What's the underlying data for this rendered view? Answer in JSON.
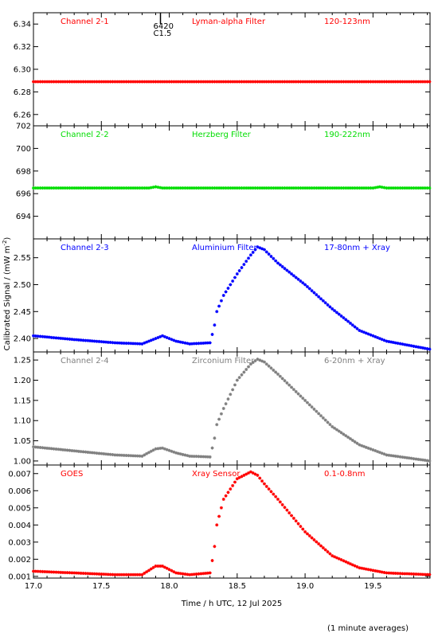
{
  "chart_data": {
    "type": "scatter",
    "xlabel": "Time / h UTC, 12 Jul 2025",
    "ylabel": "Calibrated Signal / (mW m^-2)",
    "xlim": [
      17.0,
      19.92
    ],
    "x_ticks": [
      "17.0",
      "17.5",
      "18.0",
      "18.5",
      "19.0",
      "19.5"
    ],
    "note": "(1 minute averages)",
    "flare_marker": {
      "x": 17.9,
      "labels": [
        "6420",
        "C1.5"
      ]
    },
    "marker": "asterisk",
    "panels": [
      {
        "label": "Channel 2-1",
        "filter": "Lyman-alpha Filter",
        "band": "120-123nm",
        "color": "#ff0000",
        "ylim": [
          6.25,
          6.35
        ],
        "y_ticks": [
          "6.26",
          "6.28",
          "6.30",
          "6.32",
          "6.34"
        ],
        "x": [
          17.0,
          17.5,
          18.0,
          18.5,
          19.0,
          19.5,
          19.92
        ],
        "y": [
          6.289,
          6.289,
          6.289,
          6.289,
          6.289,
          6.289,
          6.289
        ]
      },
      {
        "label": "Channel 2-2",
        "filter": "Herzberg Filter",
        "band": "190-222nm",
        "color": "#00dd00",
        "ylim": [
          692,
          702
        ],
        "y_ticks": [
          "694",
          "696",
          "698",
          "700",
          "702"
        ],
        "x": [
          17.0,
          17.85,
          17.9,
          17.95,
          18.5,
          19.5,
          19.55,
          19.6,
          19.92
        ],
        "y": [
          696.5,
          696.5,
          696.6,
          696.5,
          696.5,
          696.5,
          696.6,
          696.5,
          696.5
        ]
      },
      {
        "label": "Channel 2-3",
        "filter": "Aluminium Filter",
        "band": "17-80nm + Xray",
        "color": "#0000ff",
        "ylim": [
          2.375,
          2.585
        ],
        "y_ticks": [
          "2.40",
          "2.45",
          "2.50",
          "2.55"
        ],
        "x": [
          17.0,
          17.3,
          17.6,
          17.8,
          17.9,
          17.95,
          18.05,
          18.15,
          18.3,
          18.33,
          18.35,
          18.4,
          18.5,
          18.6,
          18.65,
          18.7,
          18.8,
          19.0,
          19.2,
          19.4,
          19.6,
          19.92
        ],
        "y": [
          2.405,
          2.398,
          2.392,
          2.39,
          2.4,
          2.405,
          2.395,
          2.39,
          2.392,
          2.42,
          2.45,
          2.48,
          2.52,
          2.555,
          2.57,
          2.565,
          2.54,
          2.5,
          2.455,
          2.415,
          2.395,
          2.38
        ]
      },
      {
        "label": "Channel 2-4",
        "filter": "Zirconium Filter",
        "band": "6-20nm + Xray",
        "color": "#808080",
        "ylim": [
          0.99,
          1.27
        ],
        "y_ticks": [
          "1.00",
          "1.05",
          "1.10",
          "1.15",
          "1.20",
          "1.25"
        ],
        "x": [
          17.0,
          17.3,
          17.6,
          17.8,
          17.9,
          17.95,
          18.05,
          18.15,
          18.3,
          18.33,
          18.35,
          18.4,
          18.5,
          18.6,
          18.65,
          18.7,
          18.8,
          19.0,
          19.2,
          19.4,
          19.6,
          19.92
        ],
        "y": [
          1.035,
          1.025,
          1.015,
          1.012,
          1.03,
          1.032,
          1.02,
          1.012,
          1.01,
          1.05,
          1.09,
          1.13,
          1.2,
          1.24,
          1.252,
          1.245,
          1.215,
          1.15,
          1.085,
          1.04,
          1.015,
          1.0
        ]
      },
      {
        "label": "GOES",
        "filter": "Xray Sensor",
        "band": "0.1-0.8nm",
        "color": "#ff0000",
        "ylim": [
          0.0009,
          0.0075
        ],
        "y_ticks": [
          "0.001",
          "0.002",
          "0.003",
          "0.004",
          "0.005",
          "0.006",
          "0.007"
        ],
        "x": [
          17.0,
          17.3,
          17.6,
          17.8,
          17.9,
          17.95,
          18.05,
          18.15,
          18.3,
          18.33,
          18.35,
          18.4,
          18.5,
          18.6,
          18.65,
          18.7,
          18.8,
          19.0,
          19.2,
          19.4,
          19.6,
          19.92
        ],
        "y": [
          0.0013,
          0.0012,
          0.0011,
          0.0011,
          0.0016,
          0.0016,
          0.0012,
          0.0011,
          0.0012,
          0.0025,
          0.004,
          0.0055,
          0.0067,
          0.0071,
          0.0069,
          0.0064,
          0.0055,
          0.0036,
          0.0022,
          0.0015,
          0.0012,
          0.0011
        ]
      }
    ]
  }
}
